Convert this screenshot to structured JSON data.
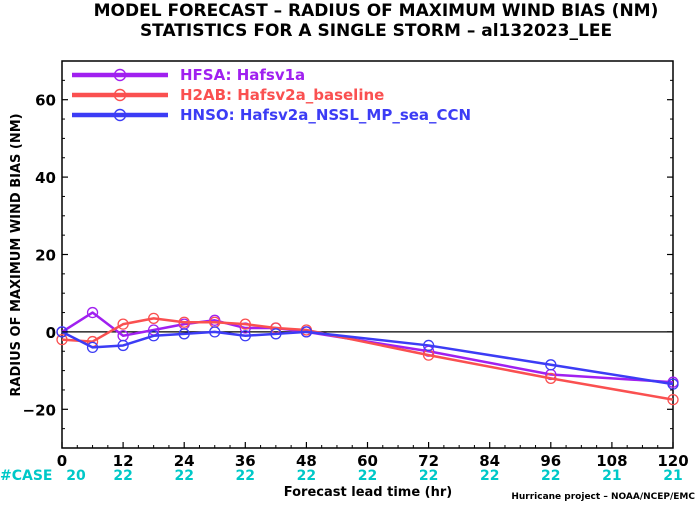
{
  "chart_data": {
    "type": "line",
    "title_line1": "MODEL FORECAST – RADIUS OF MAXIMUM WIND BIAS (NM)",
    "title_line2": "STATISTICS FOR A SINGLE STORM – al132023_LEE",
    "xlabel": "Forecast lead time (hr)",
    "ylabel": "RADIUS OF MAXIMUM WIND BIAS (NM)",
    "xlim": [
      0,
      120
    ],
    "ylim": [
      -30,
      70
    ],
    "x_ticks": [
      0,
      12,
      24,
      36,
      48,
      60,
      72,
      84,
      96,
      108,
      120
    ],
    "y_ticks": [
      -20,
      0,
      20,
      40,
      60
    ],
    "zero_line": true,
    "legend_position": "top-left",
    "case_label": "#CASE",
    "case_counts": [
      "20",
      "22",
      "22",
      "22",
      "22",
      "22",
      "22",
      "22",
      "22",
      "21",
      "21"
    ],
    "case_color": "#00c8c8",
    "credit": "Hurricane project – NOAA/NCEP/EMC",
    "series": [
      {
        "name": "HFSA: Hafsv1a",
        "color": "#a020f0",
        "x": [
          0,
          6,
          12,
          18,
          24,
          30,
          36,
          42,
          48,
          72,
          96,
          120
        ],
        "y": [
          0,
          5,
          -1,
          0.5,
          2,
          3,
          1,
          1,
          0,
          -5,
          -11,
          -13
        ]
      },
      {
        "name": "H2AB: Hafsv2a_baseline",
        "color": "#fa5050",
        "x": [
          0,
          6,
          12,
          18,
          24,
          30,
          36,
          42,
          48,
          72,
          96,
          120
        ],
        "y": [
          -2,
          -2.5,
          2,
          3.5,
          2.5,
          2.5,
          2,
          1,
          0.5,
          -6,
          -12,
          -17.5
        ]
      },
      {
        "name": "HNSO: Hafsv2a_NSSL_MP_sea_CCN",
        "color": "#3c3cf5",
        "x": [
          0,
          6,
          12,
          18,
          24,
          30,
          36,
          42,
          48,
          72,
          96,
          120
        ],
        "y": [
          0,
          -4,
          -3.5,
          -1,
          -0.5,
          0,
          -1,
          -0.5,
          0,
          -3.5,
          -8.5,
          -13.5
        ]
      }
    ]
  }
}
